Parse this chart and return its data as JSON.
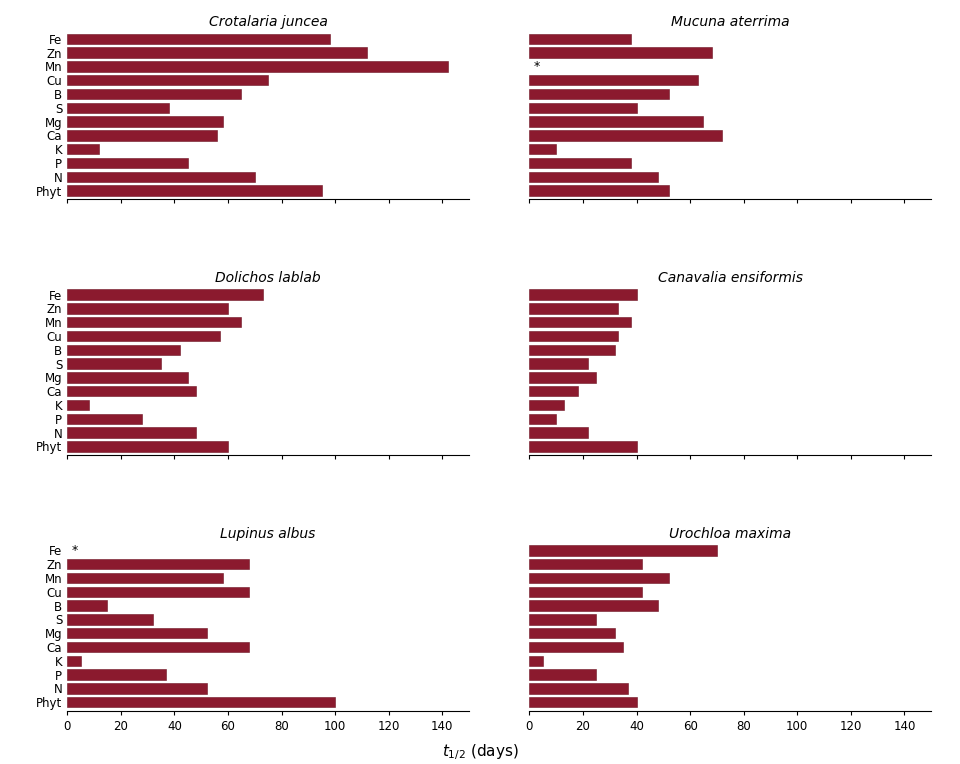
{
  "labels": [
    "Fe",
    "Zn",
    "Mn",
    "Cu",
    "B",
    "S",
    "Mg",
    "Ca",
    "K",
    "P",
    "N",
    "Phyt"
  ],
  "bar_color": "#8B1A2E",
  "xlim": [
    0,
    150
  ],
  "xticks": [
    0,
    20,
    40,
    60,
    80,
    100,
    120,
    140
  ],
  "subplots": [
    {
      "title": "Crotalaria juncea",
      "values": [
        98,
        112,
        142,
        75,
        65,
        38,
        58,
        56,
        12,
        45,
        70,
        95
      ],
      "asterisk": null,
      "show_ylabels": true
    },
    {
      "title": "Mucuna aterrima",
      "values": [
        38,
        68,
        0,
        63,
        52,
        40,
        65,
        72,
        10,
        38,
        48,
        52
      ],
      "asterisk": "Mn",
      "show_ylabels": false
    },
    {
      "title": "Dolichos lablab",
      "values": [
        73,
        60,
        65,
        57,
        42,
        35,
        45,
        48,
        8,
        28,
        48,
        60
      ],
      "asterisk": null,
      "show_ylabels": true
    },
    {
      "title": "Canavalia ensiformis",
      "values": [
        40,
        33,
        38,
        33,
        32,
        22,
        25,
        18,
        13,
        10,
        22,
        40
      ],
      "asterisk": null,
      "show_ylabels": false
    },
    {
      "title": "Lupinus albus",
      "values": [
        0,
        68,
        58,
        68,
        15,
        32,
        52,
        68,
        5,
        37,
        52,
        100
      ],
      "asterisk": "Fe",
      "show_ylabels": true
    },
    {
      "title": "Urochloa maxima",
      "values": [
        70,
        42,
        52,
        42,
        48,
        25,
        32,
        35,
        5,
        25,
        37,
        40
      ],
      "asterisk": null,
      "show_ylabels": false
    }
  ]
}
